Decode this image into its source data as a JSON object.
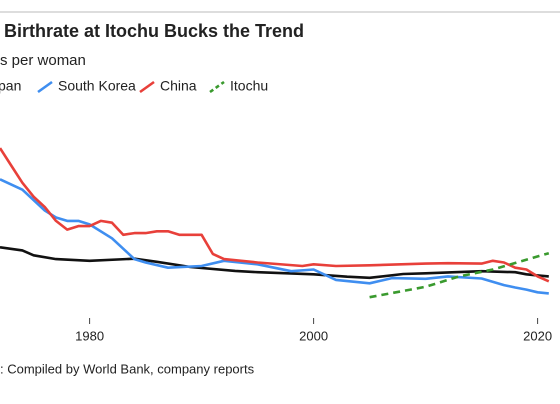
{
  "chart_data": {
    "type": "line",
    "title": "Birthrate at Itochu Bucks the Trend",
    "subtitle": "s per woman",
    "source": ": Compiled by World Bank, company reports",
    "xlim": [
      1972,
      2022
    ],
    "xticks": [
      1980,
      2000,
      2020
    ],
    "ylim": [
      0.1,
      6.1
    ],
    "series": [
      {
        "name": "pan",
        "color": "#111111",
        "dashed": false,
        "x": [
          1972,
          1974,
          1975,
          1977,
          1980,
          1984,
          1986,
          1989,
          1993,
          1995,
          2000,
          2003,
          2005,
          2008,
          2010,
          2015,
          2018,
          2019,
          2020,
          2021
        ],
        "values": [
          2.14,
          2.05,
          1.91,
          1.8,
          1.75,
          1.81,
          1.72,
          1.57,
          1.46,
          1.42,
          1.36,
          1.29,
          1.26,
          1.37,
          1.39,
          1.45,
          1.42,
          1.36,
          1.33,
          1.3
        ]
      },
      {
        "name": "South Korea",
        "color": "#3f8ef0",
        "dashed": false,
        "x": [
          1972,
          1974,
          1976,
          1977,
          1978,
          1979,
          1980,
          1982,
          1983,
          1984,
          1985,
          1987,
          1990,
          1992,
          1995,
          1998,
          2000,
          2002,
          2005,
          2007,
          2010,
          2012,
          2015,
          2017,
          2018,
          2019,
          2020,
          2021
        ],
        "values": [
          4.1,
          3.8,
          3.2,
          3.0,
          2.9,
          2.9,
          2.8,
          2.4,
          2.1,
          1.8,
          1.7,
          1.55,
          1.6,
          1.75,
          1.65,
          1.45,
          1.5,
          1.2,
          1.1,
          1.25,
          1.23,
          1.3,
          1.24,
          1.05,
          0.98,
          0.92,
          0.84,
          0.81
        ]
      },
      {
        "name": "China",
        "color": "#e8403a",
        "dashed": false,
        "x": [
          1972,
          1973,
          1974,
          1975,
          1976,
          1977,
          1978,
          1979,
          1980,
          1981,
          1982,
          1983,
          1984,
          1985,
          1986,
          1987,
          1988,
          1989,
          1990,
          1991,
          1992,
          1995,
          1999,
          2000,
          2002,
          2005,
          2010,
          2012,
          2015,
          2016,
          2017,
          2018,
          2019,
          2020,
          2021
        ],
        "values": [
          5.0,
          4.5,
          4.0,
          3.6,
          3.3,
          2.9,
          2.65,
          2.75,
          2.75,
          2.9,
          2.85,
          2.5,
          2.55,
          2.55,
          2.6,
          2.6,
          2.5,
          2.5,
          2.5,
          1.95,
          1.8,
          1.7,
          1.6,
          1.65,
          1.6,
          1.62,
          1.67,
          1.68,
          1.67,
          1.75,
          1.7,
          1.55,
          1.5,
          1.3,
          1.16
        ]
      },
      {
        "name": "Itochu",
        "color": "#3a9a2e",
        "dashed": true,
        "x": [
          2005,
          2010,
          2013,
          2016,
          2021
        ],
        "values": [
          0.7,
          1.0,
          1.3,
          1.5,
          1.97
        ]
      }
    ]
  }
}
